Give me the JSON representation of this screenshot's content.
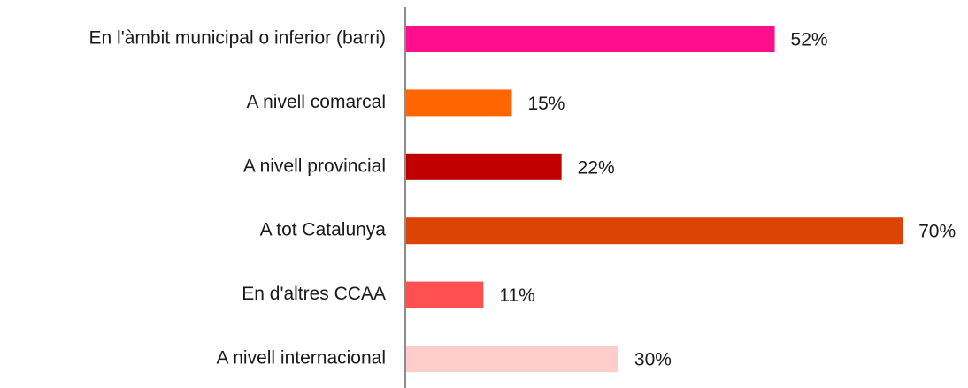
{
  "chart_data": {
    "type": "bar",
    "orientation": "horizontal",
    "categories": [
      "En l'àmbit municipal o inferior (barri)",
      "A nivell comarcal",
      "A nivell provincial",
      "A tot Catalunya",
      "En d'altres CCAA",
      "A nivell internacional"
    ],
    "values": [
      52,
      15,
      22,
      70,
      11,
      30
    ],
    "value_labels": [
      "52%",
      "15%",
      "22%",
      "70%",
      "11%",
      "30%"
    ],
    "colors": [
      "#ff0f8c",
      "#ff6600",
      "#c00000",
      "#dc4405",
      "#ff5050",
      "#ffcccc"
    ]
  }
}
